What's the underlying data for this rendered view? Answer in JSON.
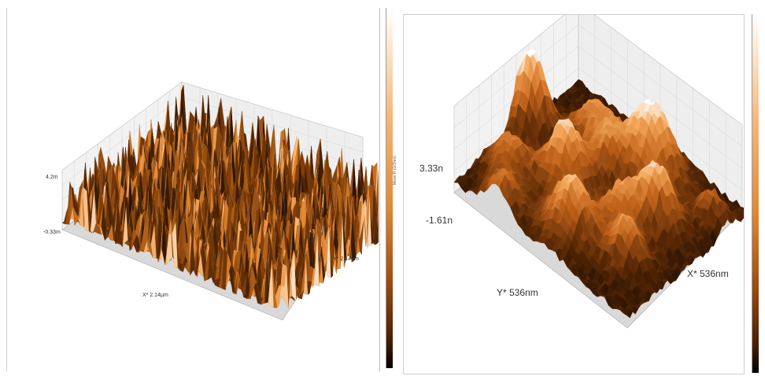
{
  "left_plot": {
    "z_max": "4.2m",
    "z_min": "-0.33m",
    "x_label": "X* 2.14µm",
    "y_label": "Y* 2.14µm",
    "colormap": [
      "#000000",
      "#7a3a08",
      "#e3862e",
      "#f9c48c",
      "#ffffff"
    ]
  },
  "right_plot": {
    "z_max": "3.33n",
    "z_min": "-1.61n",
    "x_label": "X* 536nm",
    "y_label": "Y* 536nm",
    "colormap": [
      "#000000",
      "#5a2804",
      "#c0621a",
      "#f3a557",
      "#ffffff"
    ]
  },
  "colorbar_left": {
    "title": "Mean R (GOhm)"
  },
  "surface_type": "3D AFM topography (left: dense fine peaks, right: coarse rounded grains)"
}
